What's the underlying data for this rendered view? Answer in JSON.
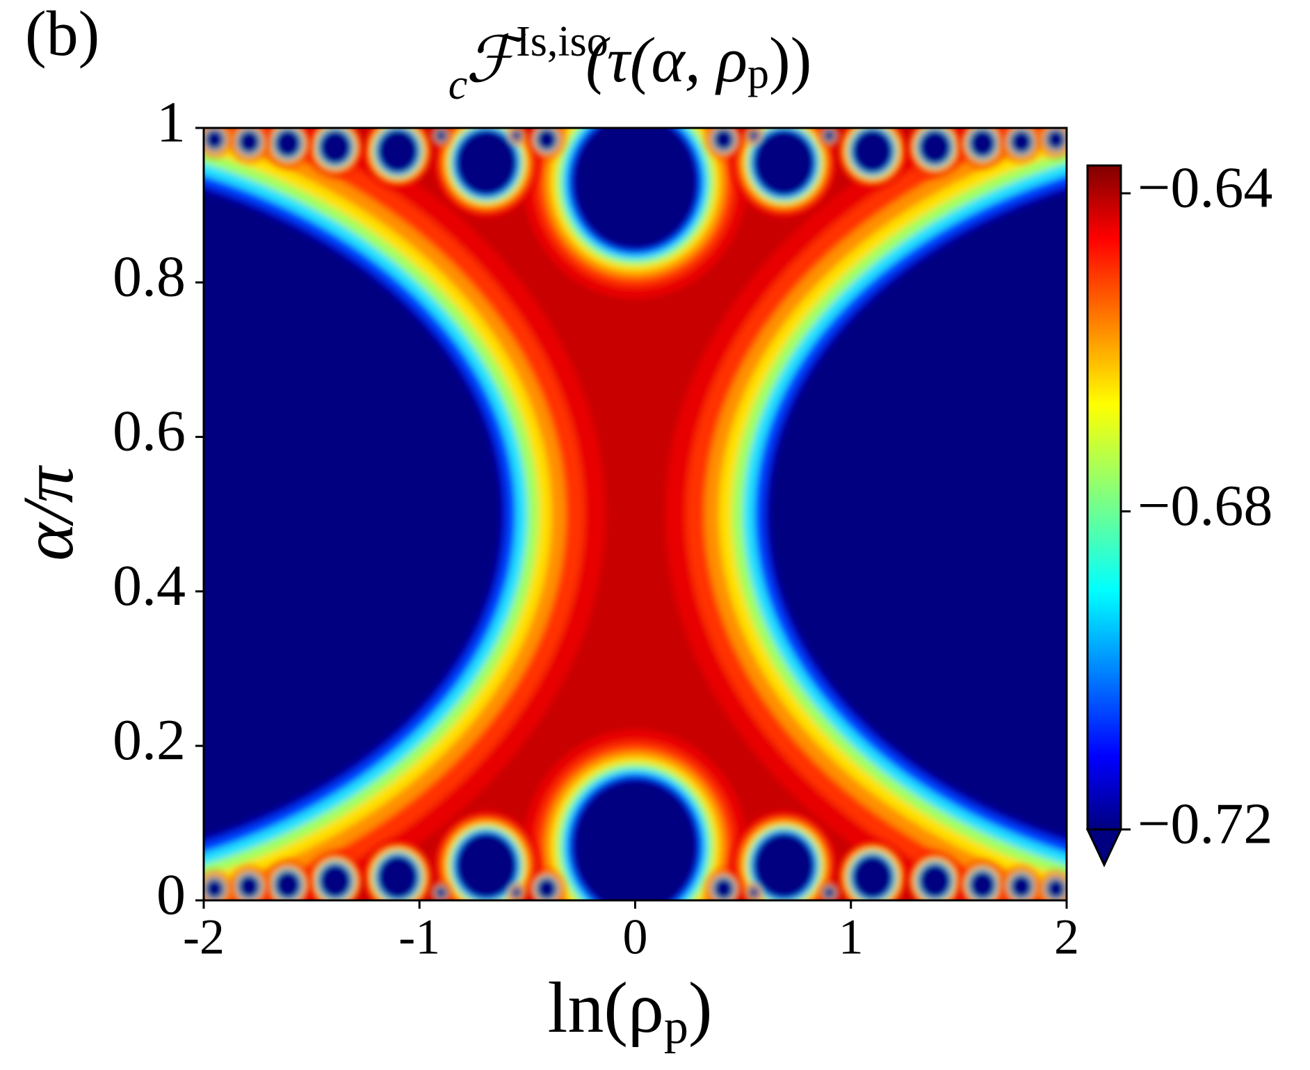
{
  "chart_data": {
    "type": "heatmap",
    "panel_label": "(b)",
    "title": {
      "symbol": "ℱ",
      "sup": "Is,iso",
      "sub": "c",
      "arg_open": "(τ(α, ρ",
      "arg_sub": "p",
      "arg_close": "))"
    },
    "x_label": {
      "open": "ln(ρ",
      "sub": "p",
      "close": ")"
    },
    "y_label": "α/π",
    "xlim": [
      -2,
      2
    ],
    "xticks": [
      -2,
      -1,
      0,
      1,
      2
    ],
    "ylim": [
      0,
      1
    ],
    "yticks": [
      0,
      0.2,
      0.4,
      0.6,
      0.8,
      1
    ],
    "colormap": "jet",
    "colorbar": {
      "clim": [
        -0.72,
        -0.6365
      ],
      "ticks": [
        {
          "value": -0.64,
          "label": "−0.64"
        },
        {
          "value": -0.68,
          "label": "−0.68"
        },
        {
          "value": -0.72,
          "label": "−0.72"
        }
      ],
      "extend": "min"
    }
  }
}
